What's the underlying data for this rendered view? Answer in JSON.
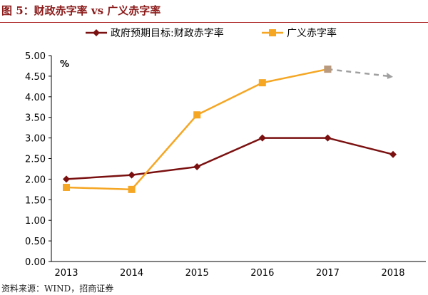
{
  "title": "图 5：财政赤字率 vs 广义赤字率",
  "source": "资料来源：WIND，招商证券",
  "chart_data": {
    "type": "line",
    "categories": [
      "2013",
      "2014",
      "2015",
      "2016",
      "2017",
      "2018"
    ],
    "ylabel": "%",
    "ylim": [
      0,
      5
    ],
    "yticks": [
      "0.00",
      "0.50",
      "1.00",
      "1.50",
      "2.00",
      "2.50",
      "3.00",
      "3.50",
      "4.00",
      "4.50",
      "5.00"
    ],
    "legend_position": "top",
    "series": [
      {
        "name": "政府预期目标:财政赤字率",
        "color": "#7b1010",
        "marker": "diamond",
        "values": [
          2.0,
          2.1,
          2.3,
          3.0,
          3.0,
          2.6
        ]
      },
      {
        "name": "广义赤字率",
        "color": "#f5a623",
        "marker": "square",
        "values": [
          1.8,
          1.75,
          3.56,
          4.34,
          4.67,
          null
        ],
        "forecast": {
          "from": "2017",
          "to": "2018",
          "values": [
            4.67,
            4.5
          ],
          "color": "#a0a0a0"
        }
      }
    ]
  }
}
